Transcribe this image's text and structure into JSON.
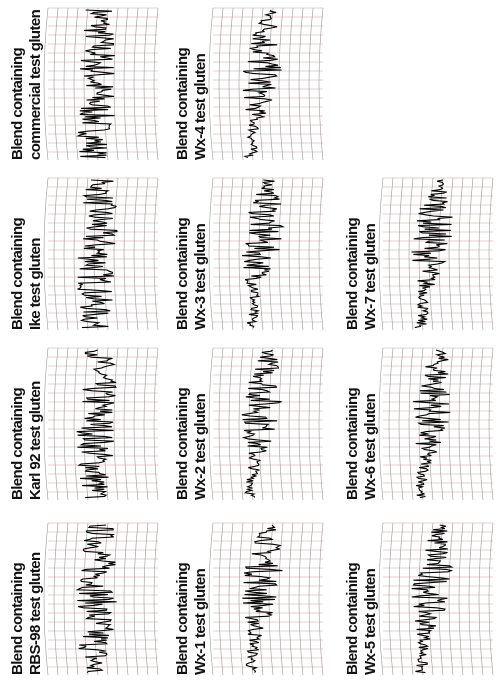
{
  "panels": [
    {
      "line1": "Blend containing",
      "line2": "commercial test gluten"
    },
    {
      "line1": "Blend containing",
      "line2": "Ike test gluten"
    },
    {
      "line1": "Blend containing",
      "line2": "Karl 92 test gluten"
    },
    {
      "line1": "Blend containing",
      "line2": "RBS-98 test gluten"
    },
    {
      "line1": "Blend containing",
      "line2": "Wx-4 test gluten"
    },
    {
      "line1": "Blend containing",
      "line2": "Wx-3 test gluten"
    },
    {
      "line1": "Blend containing",
      "line2": "Wx-2 test gluten"
    },
    {
      "line1": "Blend containing",
      "line2": "Wx-1 test gluten"
    },
    {
      "line1": "Blend containing",
      "line2": "Wx-7 test gluten"
    },
    {
      "line1": "Blend containing",
      "line2": "Wx-6 test gluten"
    },
    {
      "line1": "Blend containing",
      "line2": "Wx-5 test gluten"
    }
  ]
}
